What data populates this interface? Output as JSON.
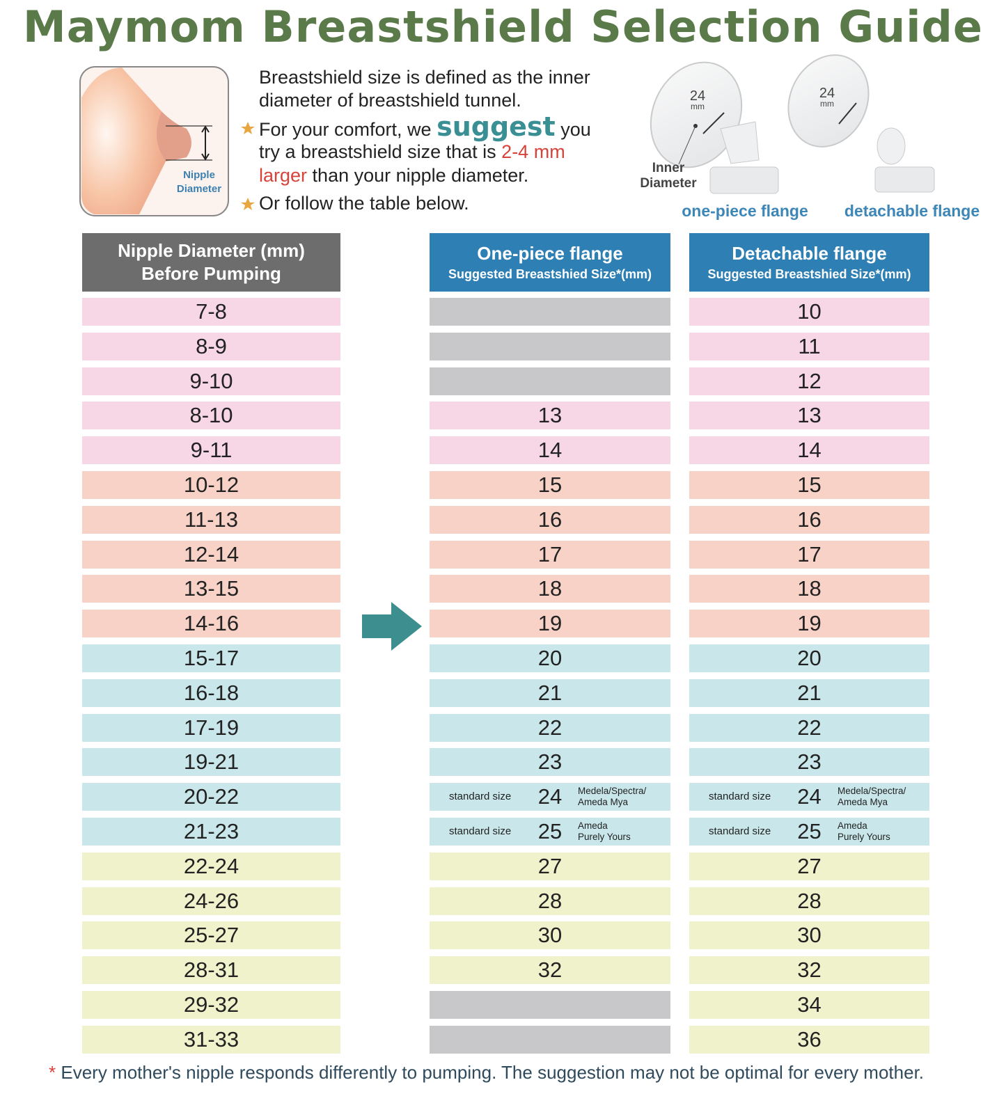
{
  "title": "Maymom Breastshield Selection Guide",
  "intro": {
    "definition": [
      "Breastshield size is defined as the inner",
      "diameter of breastshield tunnel."
    ],
    "tip": {
      "text1": "For your comfort, we",
      "emphasis": "suggest",
      "text2": "you",
      "text3": "try a breastshield size that is",
      "highlight1": "2-4 mm",
      "highlight2": "larger",
      "text4": "than your nipple diameter."
    },
    "alternative": "Or follow the table below."
  },
  "nipple_label": [
    "Nipple",
    "Diameter"
  ],
  "flanges": {
    "size_label": [
      "24",
      "mm"
    ],
    "inner_label": [
      "Inner",
      "Diameter"
    ],
    "one_piece": "one-piece flange",
    "detachable": "detachable flange"
  },
  "table": {
    "headers": [
      {
        "title": [
          "Nipple Diameter (mm)",
          "Before Pumping"
        ]
      },
      {
        "title": "One-piece flange",
        "subtitle": "Suggested Breastshied Size*(mm)"
      },
      {
        "title": "Detachable flange",
        "subtitle": "Suggested Breastshied Size*(mm)"
      }
    ],
    "rows": [
      {
        "nipple": "7-8",
        "one_piece": null,
        "detachable": 10,
        "color": "#f7d6e6"
      },
      {
        "nipple": "8-9",
        "one_piece": null,
        "detachable": 11,
        "color": "#f7d6e6"
      },
      {
        "nipple": "9-10",
        "one_piece": null,
        "detachable": 12,
        "color": "#f7d6e6"
      },
      {
        "nipple": "8-10",
        "one_piece": 13,
        "detachable": 13,
        "color": "#f7d6e6"
      },
      {
        "nipple": "9-11",
        "one_piece": 14,
        "detachable": 14,
        "color": "#f7d6e6"
      },
      {
        "nipple": "10-12",
        "one_piece": 15,
        "detachable": 15,
        "color": "#f8d2c6"
      },
      {
        "nipple": "11-13",
        "one_piece": 16,
        "detachable": 16,
        "color": "#f8d2c6"
      },
      {
        "nipple": "12-14",
        "one_piece": 17,
        "detachable": 17,
        "color": "#f8d2c6"
      },
      {
        "nipple": "13-15",
        "one_piece": 18,
        "detachable": 18,
        "color": "#f8d2c6"
      },
      {
        "nipple": "14-16",
        "one_piece": 19,
        "detachable": 19,
        "color": "#f8d2c6"
      },
      {
        "nipple": "15-17",
        "one_piece": 20,
        "detachable": 20,
        "color": "#c9e7ea"
      },
      {
        "nipple": "16-18",
        "one_piece": 21,
        "detachable": 21,
        "color": "#c9e7ea"
      },
      {
        "nipple": "17-19",
        "one_piece": 22,
        "detachable": 22,
        "color": "#c9e7ea"
      },
      {
        "nipple": "19-21",
        "one_piece": 23,
        "detachable": 23,
        "color": "#c9e7ea"
      },
      {
        "nipple": "20-22",
        "one_piece": 24,
        "detachable": 24,
        "color": "#c9e7ea",
        "note": "standard size",
        "brand": [
          "Medela/Spectra/",
          "Ameda Mya"
        ]
      },
      {
        "nipple": "21-23",
        "one_piece": 25,
        "detachable": 25,
        "color": "#c9e7ea",
        "note": "standard size",
        "brand": [
          "Ameda",
          "Purely Yours"
        ]
      },
      {
        "nipple": "22-24",
        "one_piece": 27,
        "detachable": 27,
        "color": "#f0f2cc"
      },
      {
        "nipple": "24-26",
        "one_piece": 28,
        "detachable": 28,
        "color": "#f0f2cc"
      },
      {
        "nipple": "25-27",
        "one_piece": 30,
        "detachable": 30,
        "color": "#f0f2cc"
      },
      {
        "nipple": "28-31",
        "one_piece": 32,
        "detachable": 32,
        "color": "#f0f2cc"
      },
      {
        "nipple": "29-32",
        "one_piece": null,
        "detachable": 34,
        "color": "#f0f2cc"
      },
      {
        "nipple": "31-33",
        "one_piece": null,
        "detachable": 36,
        "color": "#f0f2cc"
      }
    ]
  },
  "footnote": {
    "mark": "*",
    "text": "Every mother's nipple responds differently to pumping. The suggestion may not be optimal for every mother."
  }
}
